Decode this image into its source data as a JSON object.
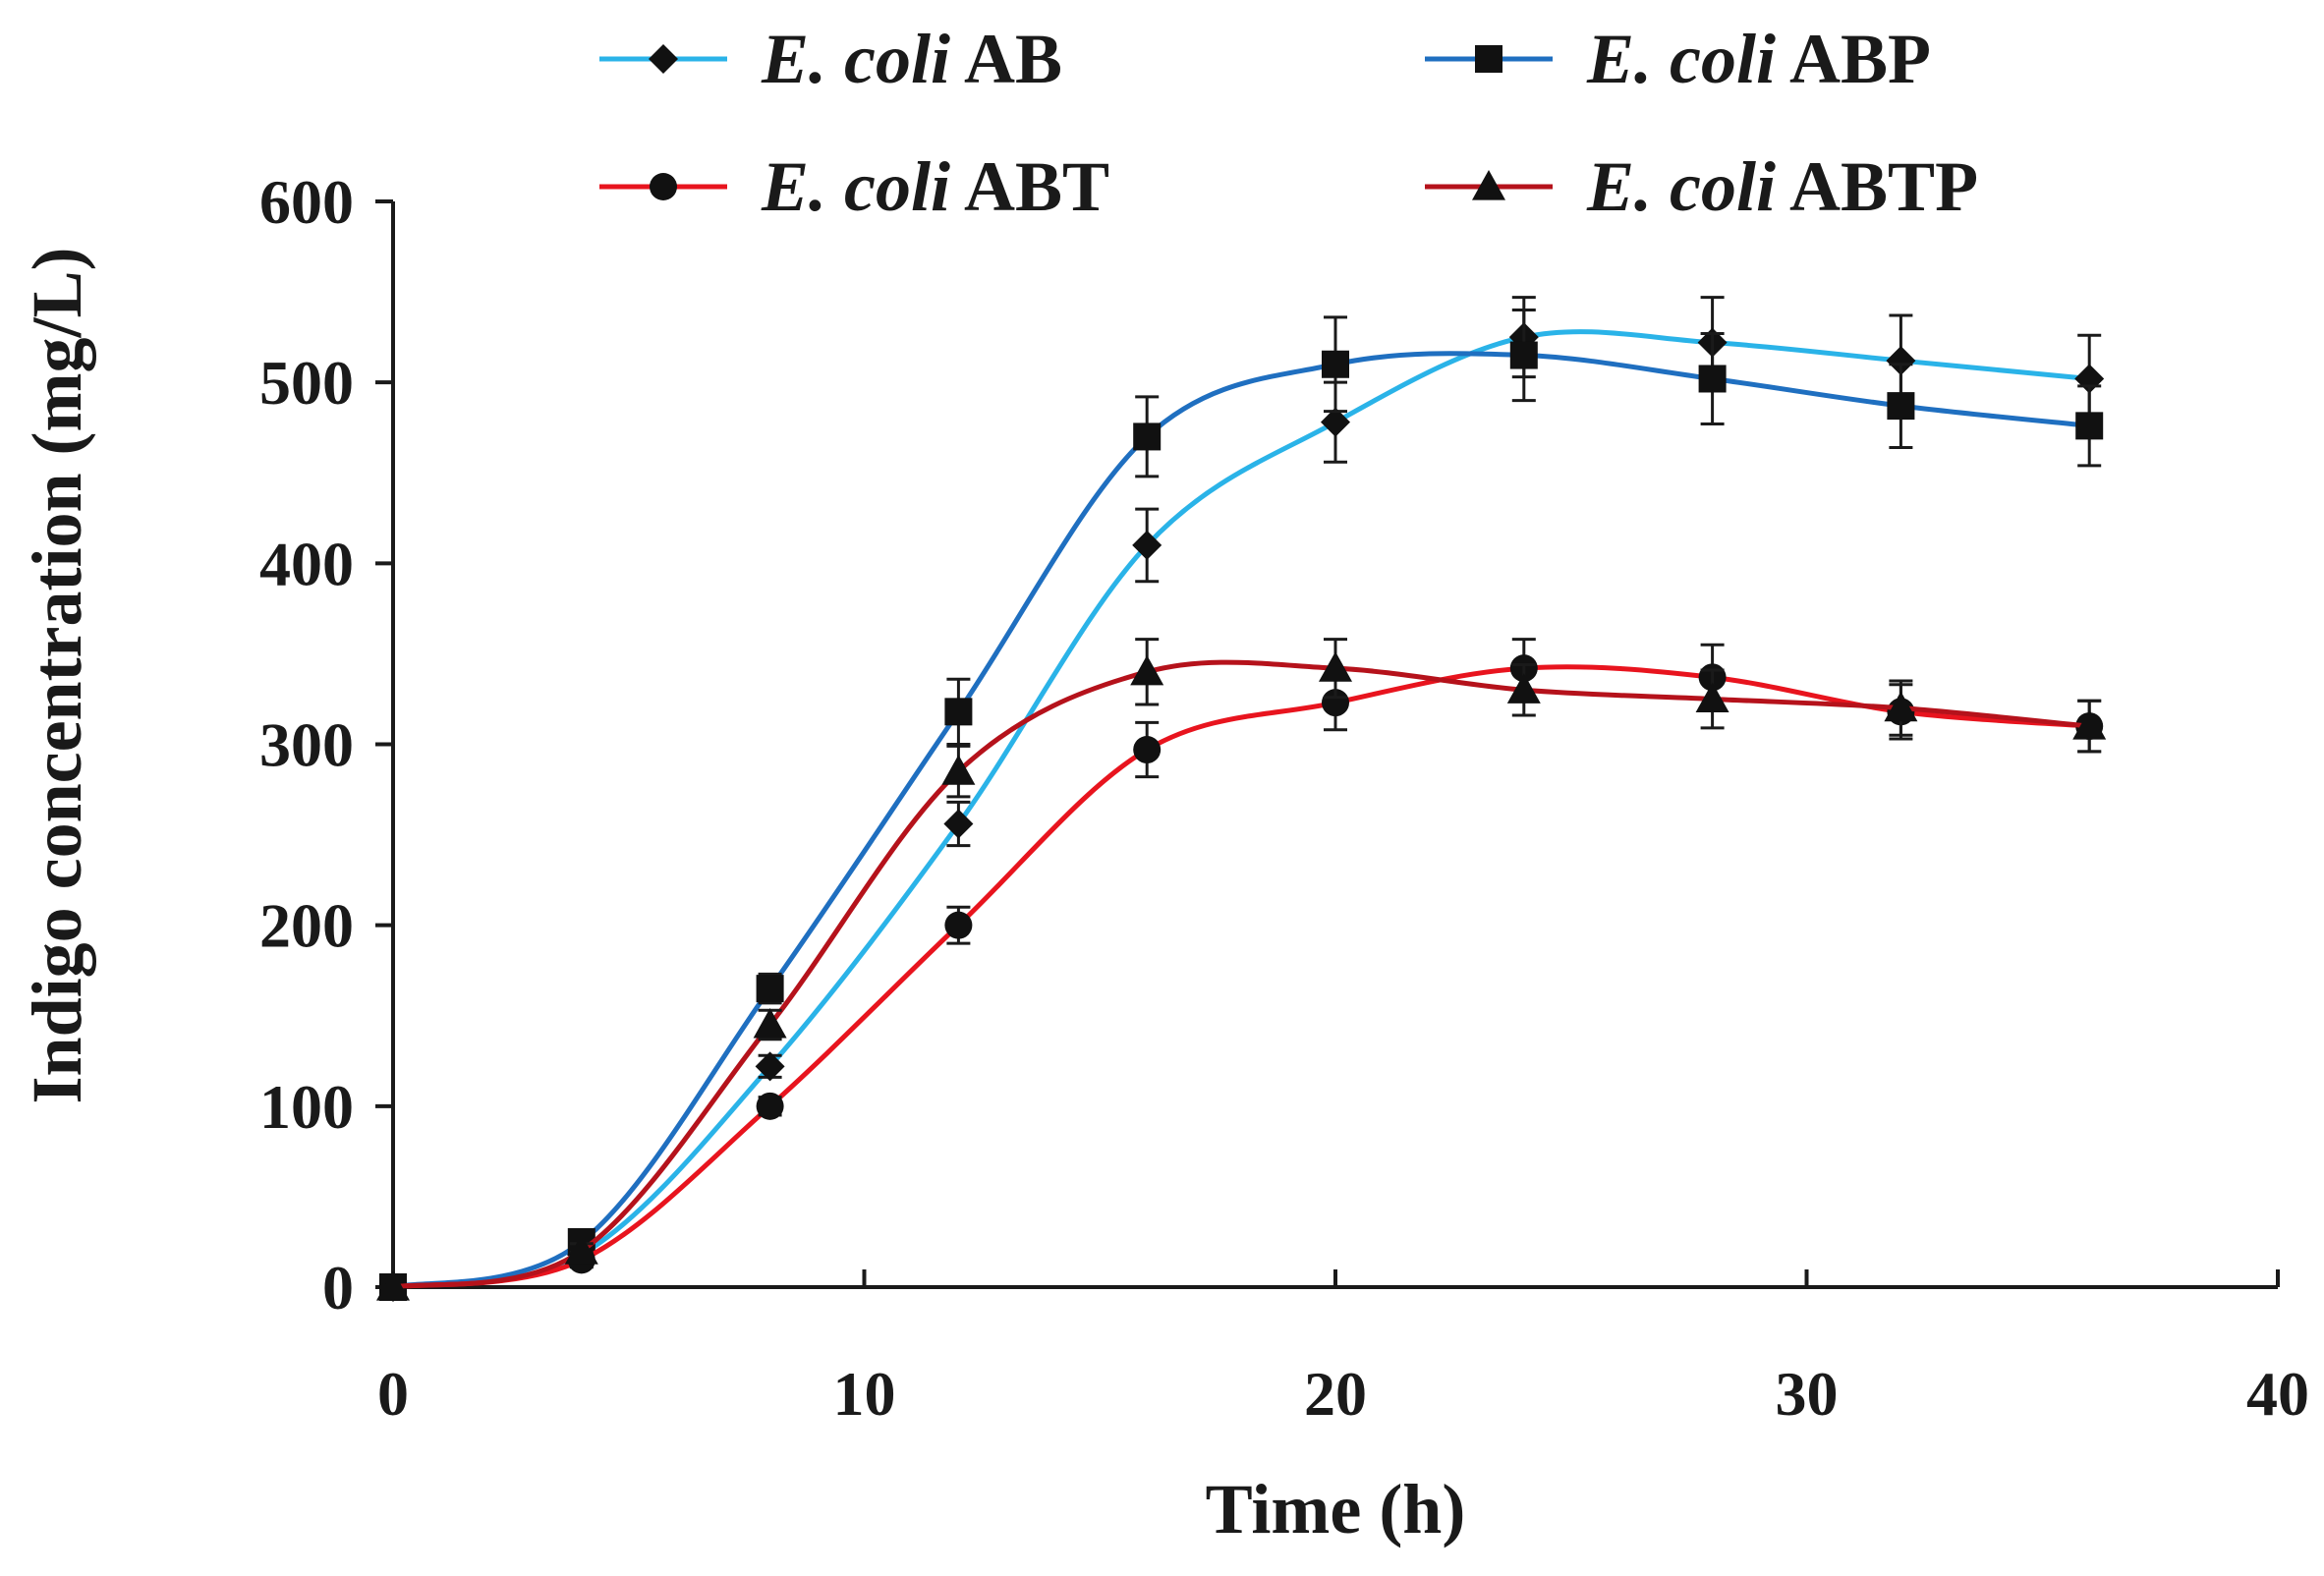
{
  "chart_data": {
    "type": "line",
    "title": "",
    "xlabel": "Time (h)",
    "ylabel": "Indigo concentration (mg/L)",
    "xlim": [
      0,
      40
    ],
    "ylim": [
      0,
      600
    ],
    "xticks": [
      0,
      10,
      20,
      30,
      40
    ],
    "yticks": [
      0,
      100,
      200,
      300,
      400,
      500,
      600
    ],
    "grid": false,
    "legend_position": "top",
    "x": [
      0,
      4,
      8,
      12,
      16,
      20,
      24,
      28,
      32,
      36
    ],
    "series": [
      {
        "name_italic": "E. coli",
        "name_rest": "AB",
        "color": "#2ab3e8",
        "marker": "diamond",
        "values": [
          0,
          18,
          122,
          256,
          410,
          478,
          525,
          522,
          512,
          502
        ],
        "errors": [
          0,
          4,
          6,
          12,
          20,
          22,
          22,
          25,
          25,
          24
        ]
      },
      {
        "name_italic": "E. coli",
        "name_rest": "ABP",
        "color": "#1f6fc0",
        "marker": "square",
        "values": [
          0,
          25,
          165,
          318,
          470,
          510,
          515,
          502,
          487,
          476
        ],
        "errors": [
          0,
          5,
          8,
          18,
          22,
          26,
          25,
          25,
          23,
          22
        ]
      },
      {
        "name_italic": "E. coli",
        "name_rest": "ABT",
        "color": "#e8141e",
        "marker": "circle",
        "values": [
          0,
          15,
          100,
          200,
          297,
          323,
          342,
          337,
          318,
          310
        ],
        "errors": [
          0,
          4,
          5,
          10,
          15,
          15,
          16,
          18,
          15,
          14
        ]
      },
      {
        "name_italic": "E. coli",
        "name_rest": "ABTP",
        "color": "#b5121b",
        "marker": "triangle",
        "values": [
          0,
          20,
          145,
          285,
          340,
          342,
          330,
          325,
          320,
          310
        ],
        "errors": [
          0,
          4,
          8,
          14,
          18,
          16,
          14,
          16,
          15,
          14
        ]
      }
    ]
  }
}
